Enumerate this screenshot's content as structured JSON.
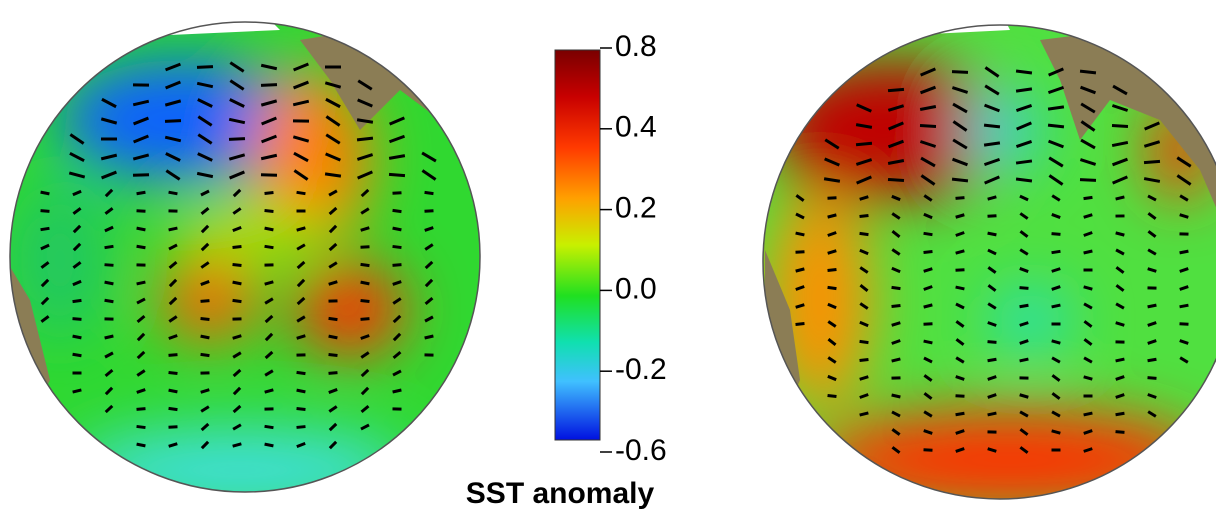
{
  "colorbar": {
    "label": "SST anomaly",
    "ticks": [
      0.8,
      0.4,
      0.2,
      {
        "value": 0,
        "label": "0.0"
      },
      -0.2,
      -0.6
    ]
  }
}
